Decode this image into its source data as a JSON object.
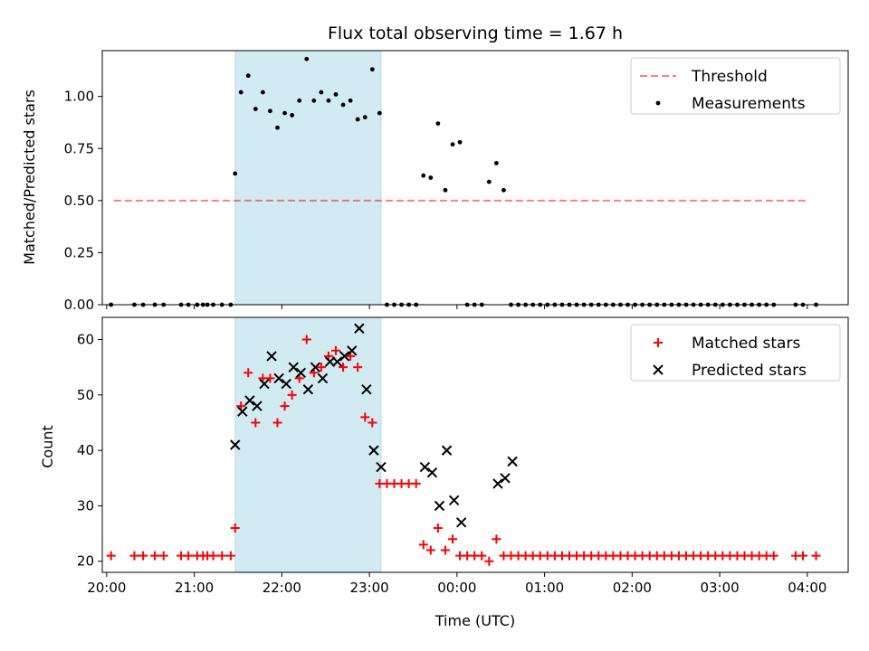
{
  "chart_data": [
    {
      "type": "scatter",
      "title": "Flux total observing time = 1.67 h",
      "xlabel": "",
      "ylabel": "Matched/Predicted stars",
      "xaxis": "time (hours after 20:00 UTC, shared)",
      "xlim": [
        "19:57",
        "04:28"
      ],
      "ylim": [
        0,
        1.22
      ],
      "yticks": [
        "0.00",
        "0.25",
        "0.50",
        "0.75",
        "1.00"
      ],
      "yticks_values": [
        0,
        0.25,
        0.5,
        0.75,
        1.0
      ],
      "shaded_region": {
        "start": "21:28",
        "end": "23:08",
        "color": "#add8e6"
      },
      "threshold": {
        "name": "Threshold",
        "value": 0.5,
        "from": "20:05",
        "to": "04:00",
        "color": "#ff0000",
        "style": "dashed"
      },
      "legend": {
        "position": "top-right",
        "entries": [
          "Threshold",
          "Measurements"
        ]
      },
      "series": [
        {
          "name": "Measurements",
          "color": "#000000",
          "marker": "dot",
          "x": [
            "20:03",
            "20:19",
            "20:25",
            "20:33",
            "20:39",
            "20:51",
            "20:56",
            "21:02",
            "21:06",
            "21:09",
            "21:13",
            "21:19",
            "21:25",
            "21:28",
            "21:32",
            "21:37",
            "21:42",
            "21:47",
            "21:52",
            "21:57",
            "22:02",
            "22:07",
            "22:12",
            "22:17",
            "22:22",
            "22:27",
            "22:32",
            "22:37",
            "22:42",
            "22:47",
            "22:52",
            "22:57",
            "23:02",
            "23:07",
            "23:12",
            "23:17",
            "23:22",
            "23:27",
            "23:32",
            "23:37",
            "23:42",
            "23:47",
            "23:52",
            "23:57",
            "00:02",
            "00:07",
            "00:12",
            "00:17",
            "00:22",
            "00:27",
            "00:32",
            "00:37",
            "00:42",
            "00:47",
            "00:52",
            "00:57",
            "01:02",
            "01:07",
            "01:12",
            "01:17",
            "01:22",
            "01:27",
            "01:32",
            "01:37",
            "01:42",
            "01:47",
            "01:52",
            "01:57",
            "02:02",
            "02:07",
            "02:12",
            "02:17",
            "02:22",
            "02:27",
            "02:32",
            "02:37",
            "02:42",
            "02:47",
            "02:52",
            "02:57",
            "03:02",
            "03:07",
            "03:12",
            "03:17",
            "03:22",
            "03:27",
            "03:32",
            "03:37",
            "03:52",
            "03:57",
            "04:06"
          ],
          "y": [
            0,
            0,
            0,
            0,
            0,
            0,
            0,
            0,
            0,
            0,
            0,
            0,
            0,
            0.63,
            1.02,
            1.1,
            0.94,
            1.02,
            0.93,
            0.85,
            0.92,
            0.91,
            0.98,
            1.18,
            0.98,
            1.02,
            0.98,
            1.01,
            0.96,
            0.98,
            0.89,
            0.9,
            1.13,
            0.92,
            0,
            0,
            0,
            0,
            0,
            0.62,
            0.61,
            0.87,
            0.55,
            0.77,
            0.78,
            0,
            0,
            0,
            0.59,
            0.68,
            0.55,
            0,
            0,
            0,
            0,
            0,
            0,
            0,
            0,
            0,
            0,
            0,
            0,
            0,
            0,
            0,
            0,
            0,
            0,
            0,
            0,
            0,
            0,
            0,
            0,
            0,
            0,
            0,
            0,
            0,
            0,
            0,
            0,
            0,
            0,
            0,
            0,
            0,
            0,
            0,
            0
          ]
        }
      ]
    },
    {
      "type": "scatter",
      "title": "",
      "xlabel": "Time (UTC)",
      "ylabel": "Count",
      "xticks": [
        "20:00",
        "21:00",
        "22:00",
        "23:00",
        "00:00",
        "01:00",
        "02:00",
        "03:00",
        "04:00"
      ],
      "ylim": [
        18,
        64
      ],
      "yticks": [
        "20",
        "30",
        "40",
        "50",
        "60"
      ],
      "yticks_values": [
        20,
        30,
        40,
        50,
        60
      ],
      "shaded_region": {
        "start": "21:28",
        "end": "23:08",
        "color": "#add8e6"
      },
      "legend": {
        "position": "top-right",
        "entries": [
          "Matched stars",
          "Predicted stars"
        ]
      },
      "series": [
        {
          "name": "Matched stars",
          "color": "#ff0000",
          "marker": "plus",
          "x": [
            "20:03",
            "20:19",
            "20:25",
            "20:33",
            "20:39",
            "20:51",
            "20:56",
            "21:02",
            "21:06",
            "21:09",
            "21:13",
            "21:19",
            "21:25",
            "21:28",
            "21:32",
            "21:37",
            "21:42",
            "21:47",
            "21:52",
            "21:57",
            "22:02",
            "22:07",
            "22:12",
            "22:17",
            "22:22",
            "22:27",
            "22:32",
            "22:37",
            "22:42",
            "22:47",
            "22:52",
            "22:57",
            "23:02",
            "23:07",
            "23:12",
            "23:17",
            "23:22",
            "23:27",
            "23:32",
            "23:37",
            "23:42",
            "23:47",
            "23:52",
            "23:57",
            "00:02",
            "00:07",
            "00:12",
            "00:17",
            "00:22",
            "00:27",
            "00:32",
            "00:37",
            "00:42",
            "00:47",
            "00:52",
            "00:57",
            "01:02",
            "01:07",
            "01:12",
            "01:17",
            "01:22",
            "01:27",
            "01:32",
            "01:37",
            "01:42",
            "01:47",
            "01:52",
            "01:57",
            "02:02",
            "02:07",
            "02:12",
            "02:17",
            "02:22",
            "02:27",
            "02:32",
            "02:37",
            "02:42",
            "02:47",
            "02:52",
            "02:57",
            "03:02",
            "03:07",
            "03:12",
            "03:17",
            "03:22",
            "03:27",
            "03:32",
            "03:37",
            "03:52",
            "03:57",
            "04:06"
          ],
          "y": [
            21,
            21,
            21,
            21,
            21,
            21,
            21,
            21,
            21,
            21,
            21,
            21,
            21,
            26,
            48,
            54,
            45,
            53,
            53,
            45,
            48,
            50,
            53,
            60,
            54,
            55,
            57,
            58,
            55,
            57,
            55,
            46,
            45,
            34,
            34,
            34,
            34,
            34,
            34,
            23,
            22,
            26,
            22,
            24,
            21,
            21,
            21,
            21,
            20,
            24,
            21,
            21,
            21,
            21,
            21,
            21,
            21,
            21,
            21,
            21,
            21,
            21,
            21,
            21,
            21,
            21,
            21,
            21,
            21,
            21,
            21,
            21,
            21,
            21,
            21,
            21,
            21,
            21,
            21,
            21,
            21,
            21,
            21,
            21,
            21,
            21,
            21,
            21,
            21,
            21,
            21
          ]
        },
        {
          "name": "Predicted stars",
          "color": "#000000",
          "marker": "x",
          "x": [
            "21:28",
            "21:33",
            "21:38",
            "21:43",
            "21:48",
            "21:53",
            "21:58",
            "22:03",
            "22:08",
            "22:13",
            "22:18",
            "22:23",
            "22:28",
            "22:33",
            "22:38",
            "22:43",
            "22:48",
            "22:53",
            "22:58",
            "23:03",
            "23:08",
            "23:38",
            "23:43",
            "23:48",
            "23:53",
            "23:58",
            "00:03",
            "00:28",
            "00:33",
            "00:38"
          ],
          "y": [
            41,
            47,
            49,
            48,
            52,
            57,
            53,
            52,
            55,
            54,
            51,
            55,
            53,
            56,
            56,
            57,
            58,
            62,
            51,
            40,
            37,
            37,
            36,
            30,
            40,
            31,
            27,
            34,
            35,
            38
          ]
        }
      ]
    }
  ]
}
